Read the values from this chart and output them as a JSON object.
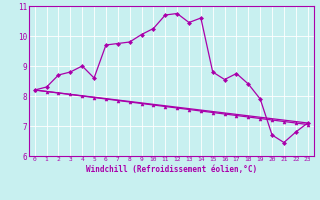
{
  "xlabel": "Windchill (Refroidissement éolien,°C)",
  "bg_color": "#c8f0f0",
  "line_color": "#aa00aa",
  "xlim": [
    -0.5,
    23.5
  ],
  "ylim": [
    6,
    11
  ],
  "yticks": [
    6,
    7,
    8,
    9,
    10,
    11
  ],
  "xticks": [
    0,
    1,
    2,
    3,
    4,
    5,
    6,
    7,
    8,
    9,
    10,
    11,
    12,
    13,
    14,
    15,
    16,
    17,
    18,
    19,
    20,
    21,
    22,
    23
  ],
  "line1_x": [
    0,
    1,
    2,
    3,
    4,
    5,
    6,
    7,
    8,
    9,
    10,
    11,
    12,
    13,
    14,
    15,
    16,
    17,
    18,
    19,
    20,
    21,
    22,
    23
  ],
  "line1_y": [
    8.2,
    8.3,
    8.7,
    8.8,
    9.0,
    8.6,
    9.7,
    9.75,
    9.8,
    10.05,
    10.25,
    10.7,
    10.75,
    10.45,
    10.6,
    8.8,
    8.55,
    8.75,
    8.4,
    7.9,
    6.7,
    6.45,
    6.8,
    7.1
  ],
  "line2_x": [
    0,
    1,
    2,
    3,
    4,
    5,
    6,
    7,
    8,
    9,
    10,
    11,
    12,
    13,
    14,
    15,
    16,
    17,
    18,
    19,
    20,
    21,
    22,
    23
  ],
  "line2_y": [
    8.2,
    8.15,
    8.1,
    8.05,
    8.0,
    7.95,
    7.9,
    7.85,
    7.8,
    7.75,
    7.7,
    7.65,
    7.6,
    7.55,
    7.5,
    7.45,
    7.4,
    7.35,
    7.3,
    7.25,
    7.2,
    7.15,
    7.1,
    7.05
  ],
  "line3_x": [
    0,
    23
  ],
  "line3_y": [
    8.2,
    7.1
  ]
}
